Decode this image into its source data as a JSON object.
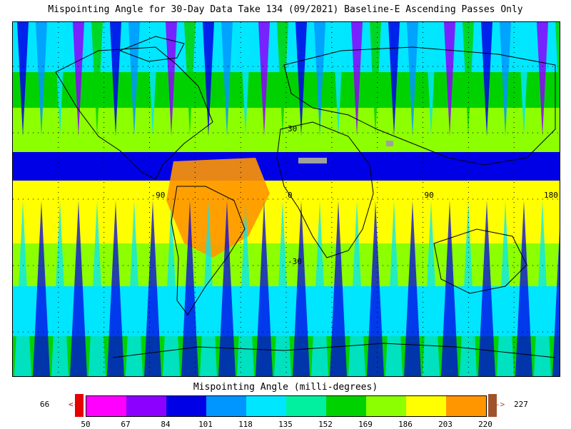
{
  "title": "Mispointing Angle for 30-Day Data Take 134 (09/2021) Baseline-E Ascending Passes Only",
  "map": {
    "grid_labels": [
      {
        "text": "30",
        "lon": 0,
        "lat": 30
      },
      {
        "text": "-90",
        "lon": -90,
        "lat": 0
      },
      {
        "text": "0",
        "lon": 0,
        "lat": 0
      },
      {
        "text": "90",
        "lon": 90,
        "lat": 0
      },
      {
        "text": "180",
        "lon": 180,
        "lat": 0
      },
      {
        "text": "-30",
        "lon": 0,
        "lat": -30
      }
    ]
  },
  "legend": {
    "title": "Mispointing Angle (milli-degrees)",
    "min_value": "66",
    "max_value": "227",
    "under_arrow": "<-",
    "over_arrow": "->",
    "under_color": "#e60000",
    "over_color": "#a0522d",
    "bins": [
      {
        "color": "#ff00ff"
      },
      {
        "color": "#8c00ff"
      },
      {
        "color": "#0000e6"
      },
      {
        "color": "#0096ff"
      },
      {
        "color": "#00e6ff"
      },
      {
        "color": "#00f0a0"
      },
      {
        "color": "#00d200"
      },
      {
        "color": "#8cff00"
      },
      {
        "color": "#ffff00"
      },
      {
        "color": "#ff9600"
      }
    ],
    "ticks": [
      "50",
      "67",
      "84",
      "101",
      "118",
      "135",
      "152",
      "169",
      "186",
      "203",
      "220"
    ]
  }
}
